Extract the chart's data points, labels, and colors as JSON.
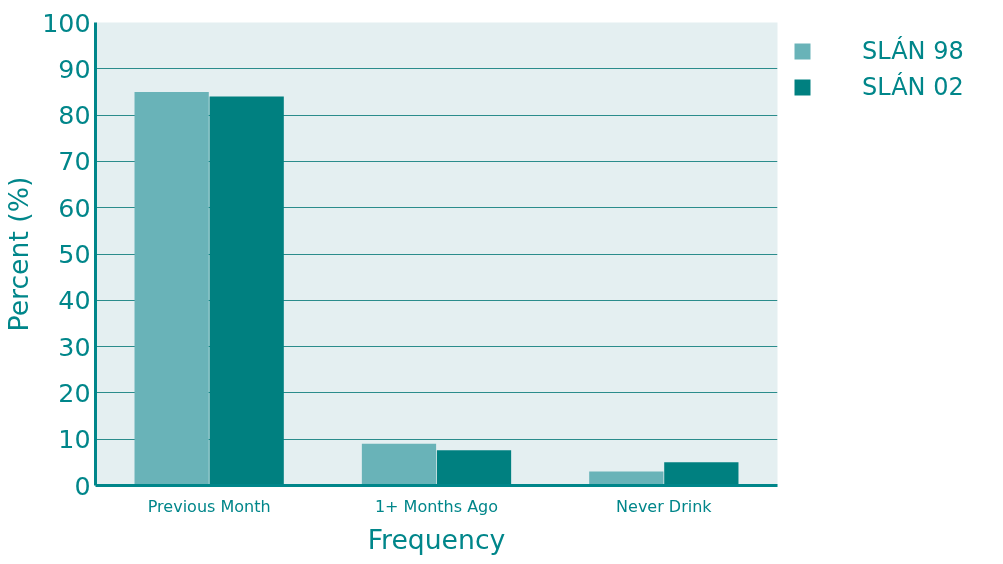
{
  "chart_data": {
    "type": "bar",
    "xlabel": "Frequency",
    "ylabel": "Percent (%)",
    "categories": [
      "Previous Month",
      "1+ Months Ago",
      "Never Drink"
    ],
    "series": [
      {
        "name": "SLÁN 98",
        "color": "#69b3b8",
        "values": [
          85,
          9,
          3
        ]
      },
      {
        "name": "SLÁN 02",
        "color": "#008080",
        "values": [
          84,
          7.6,
          5
        ]
      }
    ],
    "ylim": [
      0,
      100
    ],
    "yticks": [
      0,
      10,
      20,
      30,
      40,
      50,
      60,
      70,
      80,
      90,
      100
    ],
    "grid": "y",
    "legend": "top right"
  }
}
